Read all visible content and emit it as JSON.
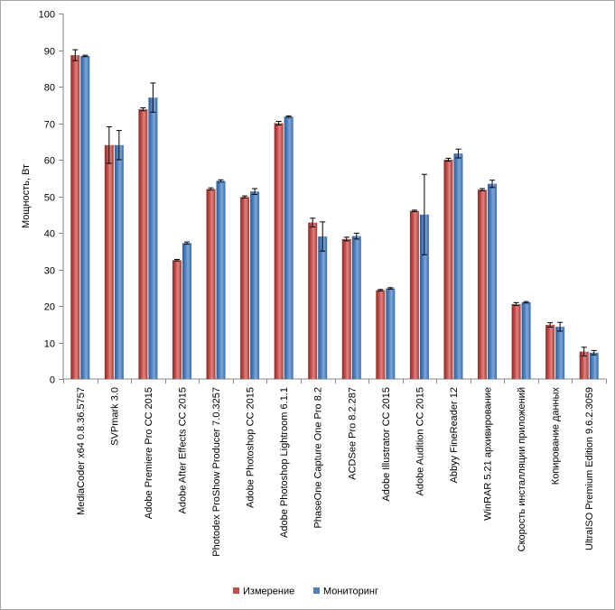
{
  "chart_data": {
    "type": "bar",
    "ylabel": "Мощность, Вт",
    "ylim": [
      0,
      100
    ],
    "yticks": [
      0,
      10,
      20,
      30,
      40,
      50,
      60,
      70,
      80,
      90,
      100
    ],
    "grid": false,
    "legend_position": "bottom",
    "categories": [
      "MediaCoder x64 0.8.36.5757",
      "SVPmark 3.0",
      "Adobe Premiere Pro CC 2015",
      "Adobe After Effects CC 2015",
      "Photodex ProShow Producer 7.0.3257",
      "Adobe Photoshop CC 2015",
      "Adobe Photoshop Lightroom 6.1.1",
      "PhaseOne Capture One Pro 8.2",
      "ACDSee Pro 8.2.287",
      "Adobe Illustrator CC 2015",
      "Adobe Audition CC 2015",
      "Abbyy FineReader 12",
      "WinRAR 5.21 архивирование",
      "Скорость инсталляции приложений",
      "Копирование данных",
      "UltraISO Premium Edition 9.6.2.3059"
    ],
    "series": [
      {
        "name": "Измерение",
        "color": "#c0504d",
        "values": [
          88.6,
          64,
          73.8,
          32.5,
          52,
          49.8,
          70,
          42.8,
          38.3,
          24.3,
          46,
          60,
          51.8,
          20.5,
          14.8,
          7.5
        ],
        "errors": [
          1.5,
          5,
          0.4,
          0.2,
          0.3,
          0.3,
          0.5,
          1.2,
          0.5,
          0.2,
          0.2,
          0.4,
          0.3,
          0.4,
          0.6,
          1.2
        ]
      },
      {
        "name": "Мониторинг",
        "color": "#4f81bd",
        "values": [
          88.4,
          64,
          77,
          37.2,
          54.2,
          51.3,
          71.8,
          39,
          39.1,
          24.8,
          45,
          61.7,
          53.4,
          21,
          14.3,
          7.2
        ],
        "errors": [
          0.2,
          4,
          4,
          0.3,
          0.3,
          0.8,
          0.2,
          4,
          0.8,
          0.2,
          11,
          1.2,
          1,
          0.2,
          1.2,
          0.6
        ]
      }
    ]
  }
}
